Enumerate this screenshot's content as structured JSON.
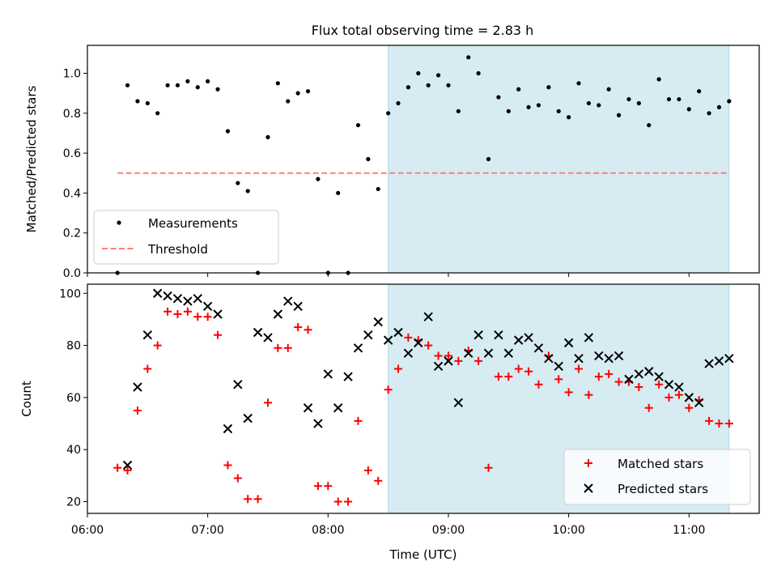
{
  "figure_title": "Flux total observing time = 2.83 h",
  "colors": {
    "measurement": "#000000",
    "threshold": "#ff7f7f",
    "matched": "#ff0000",
    "predicted": "#000000",
    "highlight": "#add8e6"
  },
  "chart_data": [
    {
      "type": "scatter",
      "title": "",
      "xlabel": "",
      "ylabel": "Matched/Predicted stars",
      "xlim": [
        "06:00",
        "11:35"
      ],
      "ylim": [
        0,
        1.14
      ],
      "yticks": [
        0.0,
        0.2,
        0.4,
        0.6,
        0.8,
        1.0
      ],
      "ytick_labels": [
        "0.0",
        "0.2",
        "0.4",
        "0.6",
        "0.8",
        "1.0"
      ],
      "grid": false,
      "legend_position": "lower-left",
      "highlight_span": [
        "08:30",
        "11:20"
      ],
      "threshold": {
        "name": "Threshold",
        "y": 0.5,
        "x": [
          "06:15",
          "11:20"
        ],
        "style": "dashed"
      },
      "series": [
        {
          "name": "Measurements",
          "marker": "dot",
          "x": [
            "06:15",
            "06:20",
            "06:25",
            "06:30",
            "06:35",
            "06:40",
            "06:45",
            "06:50",
            "06:55",
            "07:00",
            "07:05",
            "07:10",
            "07:15",
            "07:20",
            "07:25",
            "07:30",
            "07:35",
            "07:40",
            "07:45",
            "07:50",
            "07:55",
            "08:00",
            "08:05",
            "08:10",
            "08:15",
            "08:20",
            "08:25",
            "08:30",
            "08:35",
            "08:40",
            "08:45",
            "08:50",
            "08:55",
            "09:00",
            "09:05",
            "09:10",
            "09:15",
            "09:20",
            "09:25",
            "09:30",
            "09:35",
            "09:40",
            "09:45",
            "09:50",
            "09:55",
            "10:00",
            "10:05",
            "10:10",
            "10:15",
            "10:20",
            "10:25",
            "10:30",
            "10:35",
            "10:40",
            "10:45",
            "10:50",
            "10:55",
            "11:00",
            "11:05",
            "11:10",
            "11:15",
            "11:20"
          ],
          "y": [
            0.0,
            0.94,
            0.86,
            0.85,
            0.8,
            0.94,
            0.94,
            0.96,
            0.93,
            0.96,
            0.92,
            0.71,
            0.45,
            0.41,
            0.0,
            0.68,
            0.95,
            0.86,
            0.9,
            0.91,
            0.47,
            0.0,
            0.4,
            0.0,
            0.74,
            0.57,
            0.42,
            0.8,
            0.85,
            0.93,
            1.0,
            0.94,
            0.99,
            0.94,
            0.81,
            1.08,
            1.0,
            0.57,
            0.88,
            0.81,
            0.92,
            0.83,
            0.84,
            0.93,
            0.81,
            0.78,
            0.95,
            0.85,
            0.84,
            0.92,
            0.79,
            0.87,
            0.85,
            0.74,
            0.97,
            0.87,
            0.87,
            0.82,
            0.91,
            0.8,
            0.83,
            0.86
          ]
        }
      ]
    },
    {
      "type": "scatter",
      "title": "",
      "xlabel": "Time (UTC)",
      "ylabel": "Count",
      "xlim": [
        "06:00",
        "11:35"
      ],
      "ylim": [
        15.5,
        103.5
      ],
      "yticks": [
        20,
        40,
        60,
        80,
        100
      ],
      "ytick_labels": [
        "20",
        "40",
        "60",
        "80",
        "100"
      ],
      "xticks": [
        "06:00",
        "07:00",
        "08:00",
        "09:00",
        "10:00",
        "11:00"
      ],
      "xtick_labels": [
        "06:00",
        "07:00",
        "08:00",
        "09:00",
        "10:00",
        "11:00"
      ],
      "grid": false,
      "legend_position": "lower-right",
      "highlight_span": [
        "08:30",
        "11:20"
      ],
      "series": [
        {
          "name": "Matched stars",
          "marker": "plus",
          "x": [
            "06:15",
            "06:20",
            "06:25",
            "06:30",
            "06:35",
            "06:40",
            "06:45",
            "06:50",
            "06:55",
            "07:00",
            "07:05",
            "07:10",
            "07:15",
            "07:20",
            "07:25",
            "07:30",
            "07:35",
            "07:40",
            "07:45",
            "07:50",
            "07:55",
            "08:00",
            "08:05",
            "08:10",
            "08:15",
            "08:20",
            "08:25",
            "08:30",
            "08:35",
            "08:40",
            "08:45",
            "08:50",
            "08:55",
            "09:00",
            "09:05",
            "09:10",
            "09:15",
            "09:20",
            "09:25",
            "09:30",
            "09:35",
            "09:40",
            "09:45",
            "09:50",
            "09:55",
            "10:00",
            "10:05",
            "10:10",
            "10:15",
            "10:20",
            "10:25",
            "10:30",
            "10:35",
            "10:40",
            "10:45",
            "10:50",
            "10:55",
            "11:00",
            "11:05",
            "11:10",
            "11:15",
            "11:20"
          ],
          "y": [
            33,
            32,
            55,
            71,
            80,
            93,
            92,
            93,
            91,
            91,
            84,
            34,
            29,
            21,
            21,
            58,
            79,
            79,
            87,
            86,
            26,
            26,
            20,
            20,
            51,
            32,
            28,
            63,
            71,
            83,
            82,
            80,
            76,
            76,
            74,
            78,
            74,
            33,
            68,
            68,
            71,
            70,
            65,
            76,
            67,
            62,
            71,
            61,
            68,
            69,
            66,
            66,
            64,
            56,
            65,
            60,
            61,
            56,
            59,
            51,
            50,
            50
          ]
        },
        {
          "name": "Predicted stars",
          "marker": "x",
          "x": [
            "06:20",
            "06:25",
            "06:30",
            "06:35",
            "06:40",
            "06:45",
            "06:50",
            "06:55",
            "07:00",
            "07:05",
            "07:10",
            "07:15",
            "07:20",
            "07:25",
            "07:30",
            "07:35",
            "07:40",
            "07:45",
            "07:50",
            "07:55",
            "08:00",
            "08:05",
            "08:10",
            "08:15",
            "08:20",
            "08:25",
            "08:30",
            "08:35",
            "08:40",
            "08:45",
            "08:50",
            "08:55",
            "09:00",
            "09:05",
            "09:10",
            "09:15",
            "09:20",
            "09:25",
            "09:30",
            "09:35",
            "09:40",
            "09:45",
            "09:50",
            "09:55",
            "10:00",
            "10:05",
            "10:10",
            "10:15",
            "10:20",
            "10:25",
            "10:30",
            "10:35",
            "10:40",
            "10:45",
            "10:50",
            "10:55",
            "11:00",
            "11:05",
            "11:10",
            "11:15",
            "11:20"
          ],
          "y": [
            34,
            64,
            84,
            100,
            99,
            98,
            97,
            98,
            95,
            92,
            48,
            65,
            52,
            85,
            83,
            92,
            97,
            95,
            56,
            50,
            69,
            56,
            68,
            79,
            84,
            89,
            82,
            85,
            77,
            81,
            91,
            72,
            74,
            58,
            77,
            84,
            77,
            84,
            77,
            82,
            83,
            79,
            75,
            72,
            81,
            75,
            83,
            76,
            75,
            76,
            67,
            69,
            70,
            68,
            65,
            64,
            60,
            58,
            73,
            74,
            75
          ]
        }
      ]
    }
  ]
}
